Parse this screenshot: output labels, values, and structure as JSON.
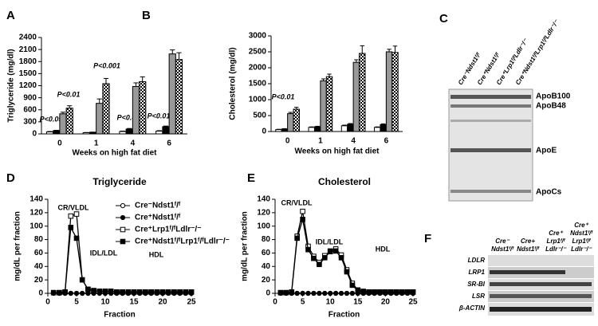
{
  "chart_data": [
    {
      "type": "bar",
      "panel": "A",
      "ylabel": "Triglyceride (mg/dl)",
      "xlabel": "Weeks on high fat diet",
      "categories": [
        "0",
        "1",
        "4",
        "6"
      ],
      "ylim": [
        0,
        2400
      ],
      "yticks": [
        0,
        300,
        600,
        900,
        1200,
        1500,
        1800,
        2100,
        2400
      ],
      "series": [
        {
          "color": "#ffffff",
          "values": [
            50,
            30,
            60,
            70
          ],
          "errors": [
            10,
            5,
            10,
            10
          ]
        },
        {
          "color": "#000000",
          "values": [
            80,
            40,
            120,
            180
          ],
          "errors": [
            10,
            5,
            15,
            15
          ]
        },
        {
          "color": "#999999",
          "values": [
            500,
            760,
            1180,
            1990
          ],
          "errors": [
            40,
            110,
            90,
            100
          ]
        },
        {
          "color": "#000000",
          "pattern": "checker",
          "values": [
            640,
            1250,
            1300,
            1850
          ],
          "errors": [
            60,
            130,
            120,
            170
          ]
        }
      ],
      "annotations": [
        "P<0.05",
        "P<0.01",
        "P<0.001",
        "P<0.05",
        "P<0.01"
      ]
    },
    {
      "type": "bar",
      "panel": "B",
      "ylabel": "Cholesterol (mg/dl)",
      "xlabel": "Weeks on high fat diet",
      "categories": [
        "0",
        "1",
        "4",
        "6"
      ],
      "ylim": [
        0,
        3000
      ],
      "yticks": [
        0,
        500,
        1000,
        1500,
        2000,
        2500,
        3000
      ],
      "series": [
        {
          "color": "#ffffff",
          "values": [
            60,
            130,
            180,
            130
          ],
          "errors": [
            10,
            15,
            20,
            15
          ]
        },
        {
          "color": "#000000",
          "values": [
            80,
            150,
            230,
            220
          ],
          "errors": [
            10,
            15,
            20,
            20
          ]
        },
        {
          "color": "#999999",
          "values": [
            560,
            1590,
            2170,
            2500
          ],
          "errors": [
            40,
            60,
            80,
            80
          ]
        },
        {
          "color": "#000000",
          "pattern": "checker",
          "values": [
            700,
            1720,
            2450,
            2480
          ],
          "errors": [
            60,
            80,
            240,
            200
          ]
        }
      ],
      "annotations": [
        "P<0.01"
      ]
    },
    {
      "type": "line",
      "panel": "D",
      "title": "Triglyceride",
      "ylabel": "mg/dL per fraction",
      "xlabel": "Fraction",
      "xlim": [
        0,
        25
      ],
      "xticks": [
        0,
        5,
        10,
        15,
        20,
        25
      ],
      "ylim": [
        0,
        140
      ],
      "yticks": [
        0,
        20,
        40,
        60,
        80,
        100,
        120,
        140
      ],
      "x": [
        1,
        2,
        3,
        4,
        5,
        6,
        7,
        8,
        9,
        10,
        11,
        12,
        13,
        14,
        15,
        16,
        17,
        18,
        19,
        20,
        21,
        22,
        23,
        24,
        25
      ],
      "series": [
        {
          "name": "Cre⁻Ndst1ᶠ/ᶠ",
          "marker": "circle",
          "color": "#000000",
          "fill": "#ffffff",
          "values": [
            0,
            0,
            0,
            0,
            0,
            0,
            0,
            0,
            0,
            0,
            0,
            0,
            0,
            0,
            0,
            0,
            0,
            0,
            0,
            0,
            0,
            0,
            0,
            0,
            0
          ]
        },
        {
          "name": "Cre⁺Ndst1ᶠ/ᶠ",
          "marker": "circle",
          "color": "#000000",
          "fill": "#000000",
          "values": [
            0,
            0,
            0,
            0,
            0,
            0,
            0,
            0,
            0,
            0,
            0,
            0,
            0,
            0,
            0,
            0,
            0,
            0,
            0,
            0,
            0,
            0,
            0,
            0,
            0
          ]
        },
        {
          "name": "Cre⁺Lrp1ᶠ/ᶠLdlr⁻/⁻",
          "marker": "square",
          "color": "#000000",
          "fill": "#ffffff",
          "values": [
            1,
            1,
            2,
            115,
            118,
            20,
            6,
            4,
            3,
            3,
            3,
            2,
            2,
            2,
            2,
            2,
            2,
            2,
            2,
            2,
            2,
            2,
            2,
            2,
            2
          ]
        },
        {
          "name": "Cre⁺Ndst1ᶠ/ᶠLrp1ᶠ/ᶠLdlr⁻/⁻",
          "marker": "square",
          "color": "#000000",
          "fill": "#000000",
          "values": [
            1,
            1,
            2,
            98,
            82,
            20,
            6,
            4,
            3,
            3,
            3,
            2,
            2,
            2,
            2,
            2,
            2,
            2,
            2,
            2,
            2,
            2,
            2,
            2,
            2
          ]
        }
      ],
      "annotations": [
        "CR/VLDL",
        "IDL/LDL",
        "HDL"
      ]
    },
    {
      "type": "line",
      "panel": "E",
      "title": "Cholesterol",
      "ylabel": "mg/dL per fraction",
      "xlabel": "Fraction",
      "xlim": [
        0,
        25
      ],
      "xticks": [
        0,
        5,
        10,
        15,
        20,
        25
      ],
      "ylim": [
        0,
        140
      ],
      "yticks": [
        0,
        20,
        40,
        60,
        80,
        100,
        120,
        140
      ],
      "x": [
        1,
        2,
        3,
        4,
        5,
        6,
        7,
        8,
        9,
        10,
        11,
        12,
        13,
        14,
        15,
        16,
        17,
        18,
        19,
        20,
        21,
        22,
        23,
        24,
        25
      ],
      "series": [
        {
          "marker": "circle",
          "color": "#000000",
          "fill": "#ffffff",
          "values": [
            0,
            0,
            0,
            0,
            0,
            0,
            0,
            0,
            0,
            0,
            0,
            0,
            0,
            0,
            0,
            0,
            0,
            0,
            0,
            0,
            0,
            0,
            0,
            0,
            0
          ]
        },
        {
          "marker": "circle",
          "color": "#000000",
          "fill": "#000000",
          "values": [
            0,
            0,
            0,
            0,
            0,
            0,
            0,
            0,
            0,
            0,
            0,
            0,
            0,
            0,
            0,
            0,
            0,
            0,
            0,
            0,
            0,
            0,
            0,
            0,
            0
          ]
        },
        {
          "marker": "square",
          "color": "#000000",
          "fill": "#ffffff",
          "values": [
            1,
            1,
            2,
            85,
            122,
            70,
            55,
            46,
            56,
            63,
            66,
            57,
            35,
            15,
            5,
            3,
            2,
            2,
            2,
            2,
            2,
            2,
            2,
            2,
            2
          ]
        },
        {
          "marker": "square",
          "color": "#000000",
          "fill": "#000000",
          "values": [
            1,
            1,
            2,
            82,
            110,
            65,
            52,
            43,
            53,
            62,
            63,
            53,
            32,
            12,
            4,
            2,
            2,
            2,
            2,
            2,
            2,
            2,
            2,
            2,
            2
          ]
        }
      ],
      "annotations": [
        "CR/VLDL",
        "IDL/LDL",
        "HDL"
      ]
    }
  ],
  "blots": [
    {
      "panel": "C",
      "lanes": [
        "Cre⁻Ndst1ᶠ/ᶠ",
        "Cre⁺Ndst1ᶠ/ᶠ",
        "Cre⁺Lrp1ᶠ/ᶠLdlr⁻/⁻",
        "Cre⁺Ndst1ᶠ/ᶠLrp1ᶠ/ᶠLdlr⁻/⁻"
      ],
      "bands": [
        "ApoB100",
        "ApoB48",
        "ApoE",
        "ApoCs"
      ]
    },
    {
      "panel": "F",
      "groups": [
        [
          "Cre⁻",
          "Ndst1ᶠ/ᶠ"
        ],
        [
          "Cre+",
          "Ndst1ᶠ/ᶠ"
        ],
        [
          "Cre⁺",
          "Lrp1ᶠ/ᶠ",
          "Ldlr⁻/⁻"
        ],
        [
          "Cre⁺",
          "Ndst1ᶠ/ᶠ",
          "Lrp1ᶠ/ᶠ",
          "Ldlr⁻/⁻"
        ]
      ],
      "rows": [
        "LDLR",
        "LRP1",
        "SR-BI",
        "LSR",
        "β-ACTIN"
      ]
    }
  ]
}
